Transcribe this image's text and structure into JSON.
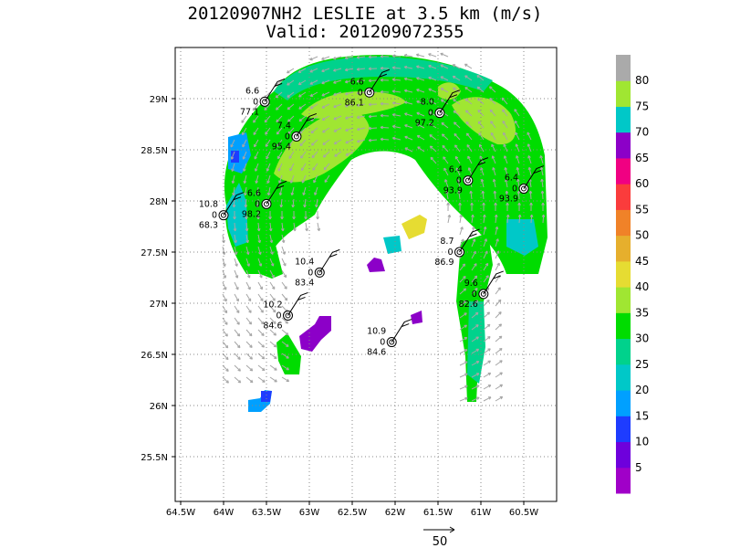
{
  "title": "20120907NH2 LESLIE at 3.5 km (m/s)",
  "subtitle": "Valid: 201209072355",
  "chart_data": {
    "type": "heatmap",
    "title": "20120907NH2 LESLIE at 3.5 km (m/s)",
    "subtitle": "Valid: 201209072355",
    "xlim": [
      -64.5,
      -60.5
    ],
    "ylim": [
      25.5,
      29.0
    ],
    "x_ticks": [
      "64.5W",
      "64W",
      "63.5W",
      "63W",
      "62.5W",
      "62W",
      "61.5W",
      "61W",
      "60.5W"
    ],
    "y_ticks": [
      "25.5N",
      "26N",
      "26.5N",
      "27N",
      "27.5N",
      "28N",
      "28.5N",
      "29N"
    ],
    "grid": true,
    "colorbar": {
      "labels": [
        "5",
        "10",
        "15",
        "20",
        "25",
        "30",
        "35",
        "40",
        "45",
        "50",
        "55",
        "60",
        "65",
        "70",
        "75",
        "80"
      ],
      "colors": [
        "#a000c8",
        "#6e00dc",
        "#1e3cff",
        "#00a0ff",
        "#00c8c8",
        "#00d28c",
        "#00dc00",
        "#a0e632",
        "#e6dc32",
        "#e6af2d",
        "#f08228",
        "#fa3c3c",
        "#f00082",
        "#8c00c8",
        "#00c8c8",
        "#a0e632",
        "#aaaaaa"
      ]
    },
    "vector_reference": {
      "label": "50"
    },
    "stations": [
      {
        "lon": -63.52,
        "lat": 28.97,
        "top": "6.6",
        "left": "0",
        "bottom": "77.1"
      },
      {
        "lon": -62.3,
        "lat": 29.06,
        "top": "6.6",
        "left": "0",
        "bottom": "86.1"
      },
      {
        "lon": -61.48,
        "lat": 28.86,
        "top": "8.0",
        "left": "0",
        "bottom": "97.2"
      },
      {
        "lon": -63.15,
        "lat": 28.63,
        "top": "7.4",
        "left": "0",
        "bottom": "95.4"
      },
      {
        "lon": -61.15,
        "lat": 28.2,
        "top": "6.4",
        "left": "0",
        "bottom": "93.9"
      },
      {
        "lon": -60.5,
        "lat": 28.12,
        "top": "6.4",
        "left": "0",
        "bottom": "93.9"
      },
      {
        "lon": -63.5,
        "lat": 27.97,
        "top": "6.6",
        "left": "0",
        "bottom": "98.2"
      },
      {
        "lon": -64.0,
        "lat": 27.86,
        "top": "10.8",
        "left": "0",
        "bottom": "68.3"
      },
      {
        "lon": -61.25,
        "lat": 27.5,
        "top": "8.7",
        "left": "0",
        "bottom": "86.9"
      },
      {
        "lon": -62.88,
        "lat": 27.3,
        "top": "10.4",
        "left": "0",
        "bottom": "83.4"
      },
      {
        "lon": -60.97,
        "lat": 27.09,
        "top": "9.6",
        "left": "0",
        "bottom": "82.6"
      },
      {
        "lon": -63.25,
        "lat": 26.88,
        "top": "10.2",
        "left": "0",
        "bottom": "84.6"
      },
      {
        "lon": -62.04,
        "lat": 26.62,
        "top": "10.9",
        "left": "0",
        "bottom": "84.6"
      }
    ]
  }
}
